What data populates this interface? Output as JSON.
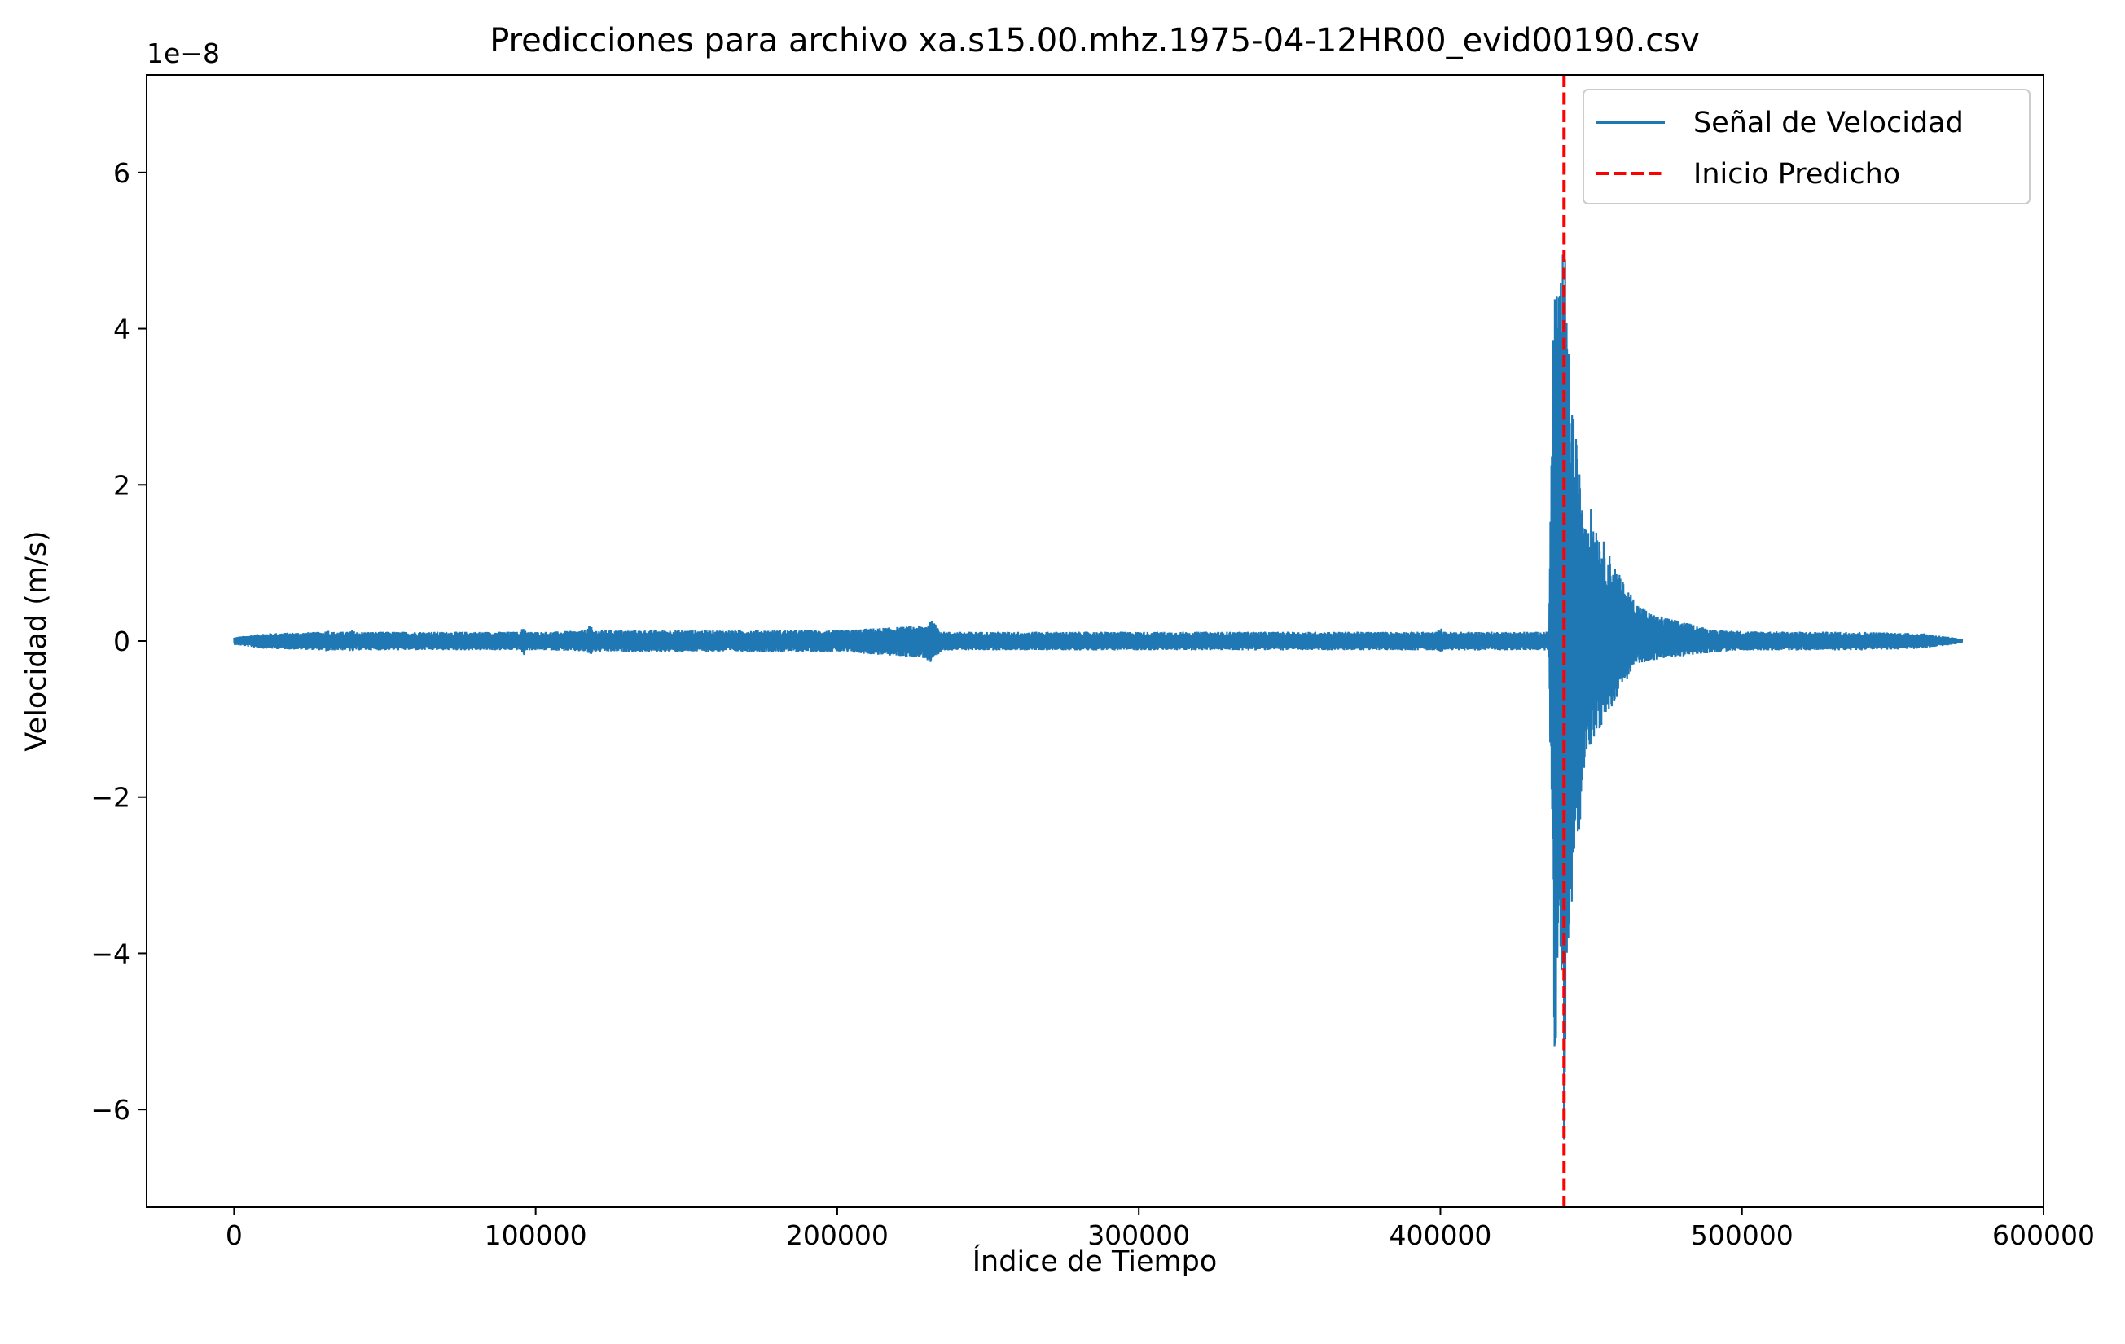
{
  "chart_data": {
    "type": "line",
    "title": "Predicciones para archivo xa.s15.00.mhz.1975-04-12HR00_evid00190.csv",
    "xlabel": "Índice de Tiempo",
    "ylabel": "Velocidad (m/s)",
    "y_offset_label": "1e−8",
    "xlim": [
      -29000,
      600000
    ],
    "ylim": [
      -7.25,
      7.25
    ],
    "y_scale_factor": 1e-08,
    "x_ticks": [
      0,
      100000,
      200000,
      300000,
      400000,
      500000,
      600000
    ],
    "x_tick_labels": [
      "0",
      "100000",
      "200000",
      "300000",
      "400000",
      "500000",
      "600000"
    ],
    "y_ticks": [
      -6,
      -4,
      -2,
      0,
      2,
      4,
      6
    ],
    "y_tick_labels": [
      "−6",
      "−4",
      "−2",
      "0",
      "2",
      "4",
      "6"
    ],
    "grid": false,
    "legend_position": "top-right",
    "series": [
      {
        "name": "Señal de Velocidad",
        "color": "#1f77b4",
        "style": "solid",
        "x_range": [
          0,
          573000
        ],
        "envelope": {
          "x": [
            0,
            10000,
            30000,
            31000,
            32000,
            38000,
            39000,
            40000,
            95000,
            96000,
            97000,
            105000,
            117000,
            118000,
            119000,
            150000,
            200000,
            229000,
            231000,
            233000,
            235000,
            300000,
            399000,
            400000,
            401000,
            436000,
            437000,
            438000,
            439000,
            440000,
            441000,
            442000,
            444000,
            446000,
            448000,
            450000,
            455000,
            460000,
            465000,
            470000,
            480000,
            490000,
            500000,
            520000,
            540000,
            560000,
            573000
          ],
          "upper": [
            0.05,
            0.1,
            0.12,
            0.15,
            0.12,
            0.12,
            0.15,
            0.12,
            0.12,
            0.2,
            0.12,
            0.12,
            0.14,
            0.22,
            0.14,
            0.14,
            0.14,
            0.2,
            0.27,
            0.2,
            0.12,
            0.12,
            0.12,
            0.18,
            0.12,
            0.12,
            3.4,
            5.0,
            4.5,
            4.6,
            5.5,
            4.0,
            3.0,
            2.2,
            1.8,
            1.7,
            1.2,
            0.8,
            0.5,
            0.35,
            0.25,
            0.15,
            0.13,
            0.12,
            0.12,
            0.1,
            0.03
          ],
          "lower": [
            -0.05,
            -0.1,
            -0.12,
            -0.15,
            -0.12,
            -0.12,
            -0.15,
            -0.12,
            -0.12,
            -0.2,
            -0.12,
            -0.12,
            -0.14,
            -0.2,
            -0.14,
            -0.14,
            -0.14,
            -0.22,
            -0.3,
            -0.22,
            -0.12,
            -0.12,
            -0.12,
            -0.15,
            -0.12,
            -0.12,
            -3.4,
            -5.5,
            -4.5,
            -4.7,
            -6.5,
            -4.6,
            -3.2,
            -2.5,
            -1.5,
            -1.3,
            -1.0,
            -0.6,
            -0.3,
            -0.25,
            -0.2,
            -0.15,
            -0.12,
            -0.12,
            -0.12,
            -0.1,
            -0.03
          ]
        }
      },
      {
        "name": "Inicio Predicho",
        "color": "#ff0000",
        "style": "dashed",
        "x_value": 441000
      }
    ]
  }
}
